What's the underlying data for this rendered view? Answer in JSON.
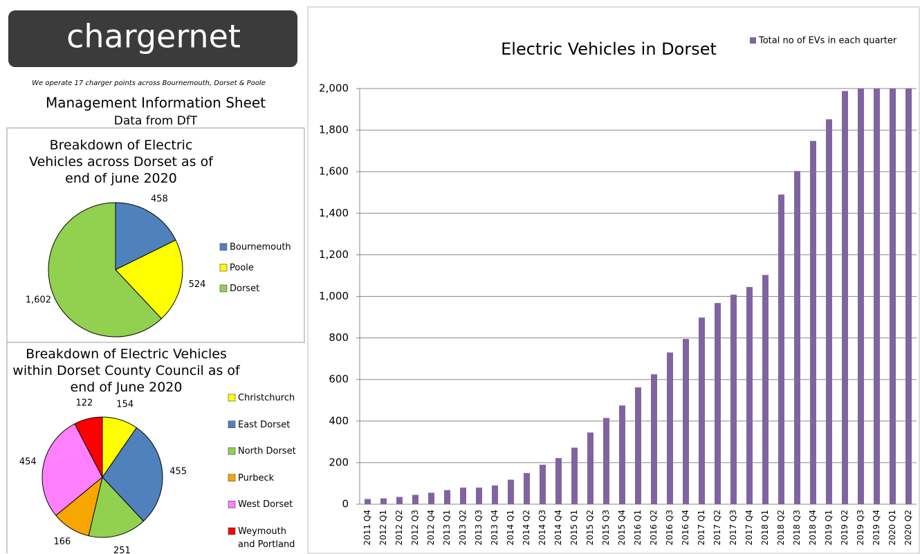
{
  "header": {
    "logo": "chargernet",
    "tagline": "We operate 17 charger points across Bournemouth, Dorset & Poole",
    "title": "Management Information Sheet",
    "subtitle": "Data from DfT"
  },
  "chart_data": [
    {
      "type": "pie",
      "title": "Breakdown of Electric Vehicles across Dorset as of end of june 2020",
      "categories": [
        "Bournemouth",
        "Poole",
        "Dorset"
      ],
      "values": [
        458,
        524,
        1602
      ],
      "value_labels": [
        "458",
        "524",
        "1,602"
      ],
      "colors": [
        "#4f81bd",
        "#ffff00",
        "#92d050"
      ]
    },
    {
      "type": "pie",
      "title": "Breakdown of Electric Vehicles within Dorset County Council as of end of June 2020",
      "categories": [
        "Christchurch",
        "East Dorset",
        "North Dorset",
        "Purbeck",
        "West Dorset",
        "Weymouth and Portland"
      ],
      "values": [
        154,
        455,
        251,
        166,
        454,
        122
      ],
      "colors": [
        "#ffff00",
        "#4f81bd",
        "#92d050",
        "#f7a600",
        "#ff80ff",
        "#ff0000"
      ]
    },
    {
      "type": "bar",
      "title": "Electric Vehicles in Dorset",
      "categories": [
        "2011 Q4",
        "2012 Q1",
        "2012 Q2",
        "2012 Q3",
        "2012 Q4",
        "2013 Q1",
        "2013 Q2",
        "2013 Q3",
        "2013 Q4",
        "2014 Q1",
        "2014 Q2",
        "2014 Q3",
        "2014 Q4",
        "2015 Q1",
        "2015 Q2",
        "2015 Q3",
        "2015 Q4",
        "2016 Q1",
        "2016 Q2",
        "2016 Q3",
        "2016 Q4",
        "2017 Q1",
        "2017 Q2",
        "2017 Q3",
        "2017 Q4",
        "2018 Q1",
        "2018 Q2",
        "2018 Q3",
        "2018 Q4",
        "2019 Q1",
        "2019 Q2",
        "2019 Q3",
        "2019 Q4",
        "2020 Q1",
        "2020 Q2"
      ],
      "series": [
        {
          "name": "Total no of EVs in each quarter",
          "color": "#8064a2",
          "values": [
            25,
            28,
            35,
            45,
            55,
            68,
            80,
            80,
            90,
            118,
            150,
            190,
            222,
            272,
            345,
            415,
            475,
            562,
            625,
            730,
            795,
            898,
            968,
            1008,
            1045,
            1103,
            1490,
            1603,
            1748,
            1852,
            1988,
            2000,
            2000,
            2000,
            2000
          ]
        }
      ],
      "ylim": [
        0,
        2000
      ],
      "yticks": [
        0,
        200,
        400,
        600,
        800,
        {
          "value": 1000,
          "label": "1,000"
        },
        {
          "value": 1200,
          "label": "1,200"
        },
        {
          "value": 1400,
          "label": "1,400"
        },
        {
          "value": 1600,
          "label": "1,600"
        },
        {
          "value": 1800,
          "label": "1,800"
        },
        {
          "value": 2000,
          "label": "2,000"
        }
      ],
      "grid": true
    }
  ]
}
